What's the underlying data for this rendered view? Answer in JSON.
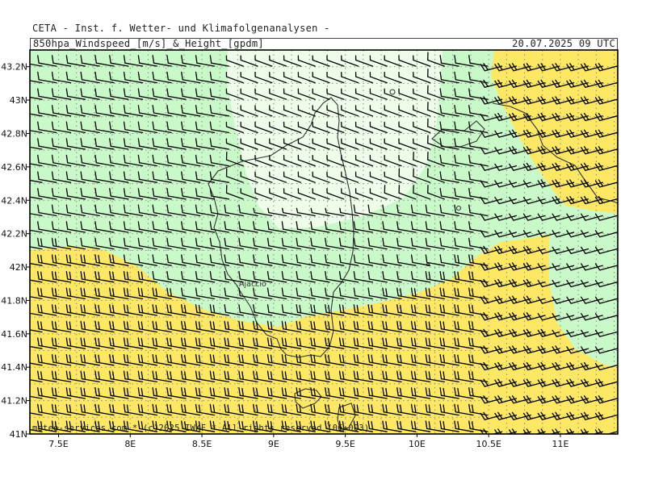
{
  "header": {
    "title": "CETA - Inst. f. Wetter- und Klimafolgenanalysen -",
    "subtitle": "850hpa_Windspeed_[m/s]_&_Height_[gpdm]",
    "valid_time": "20.07.2025 09 UTC"
  },
  "map": {
    "lon_range": [
      7.3,
      11.4
    ],
    "lat_range": [
      41.0,
      43.3
    ],
    "lon_ticks": [
      "7.5E",
      "8E",
      "8.5E",
      "9E",
      "9.5E",
      "10E",
      "10.5E",
      "11E"
    ],
    "lat_ticks": [
      "41N",
      "41.2N",
      "41.4N",
      "41.6N",
      "41.8N",
      "42N",
      "42.2N",
      "42.4N",
      "42.6N",
      "42.8N",
      "43N",
      "43.2N"
    ],
    "place_label": "Ajaccio",
    "colors": {
      "band_strong": "#fde866",
      "band_moderate": "#c9f9c9",
      "band_weak": "#edfde9",
      "coast": "#333333",
      "barb": "#000000",
      "grid": "#888888"
    },
    "wind_field": "westerly to north-westerly barbs, stronger (yellow) over south and north-east, weak core over northern Corsica"
  },
  "footer": {
    "credit": "meteo-services.com * (c)2025 IWKF * All rights reserved (06+003)"
  }
}
